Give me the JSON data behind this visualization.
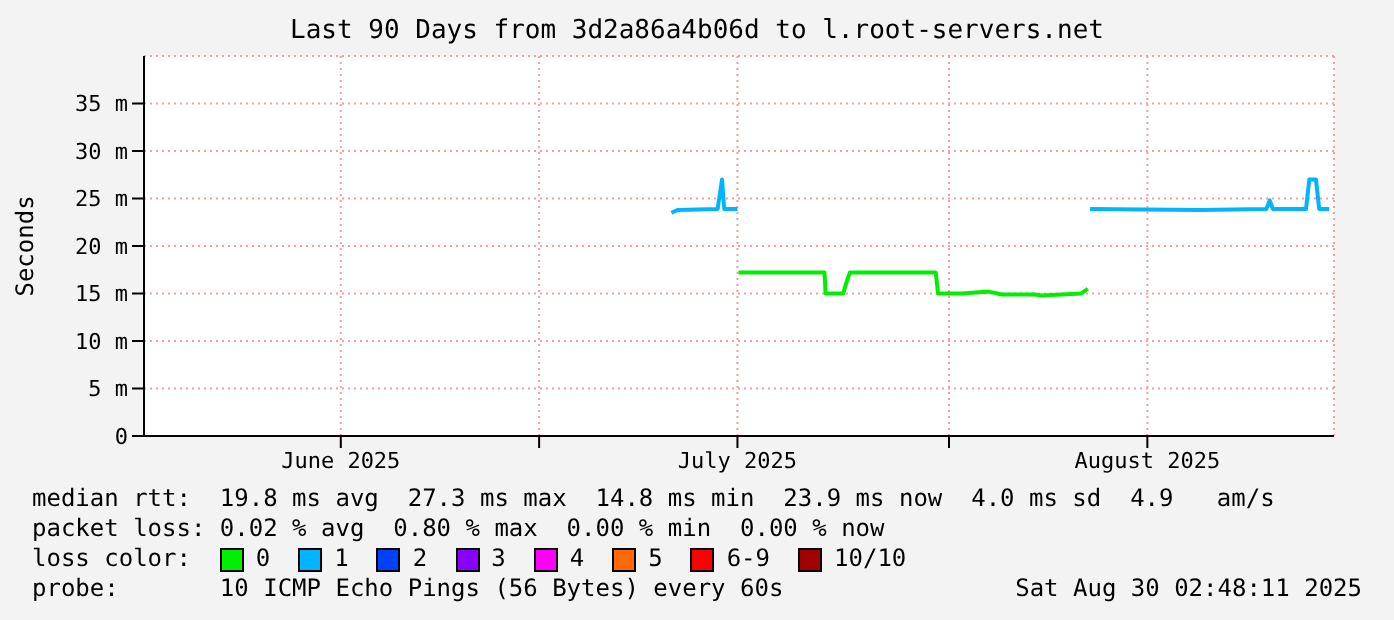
{
  "chart_data": {
    "type": "line",
    "title": "Last 90 Days from 3d2a86a4b06d to l.root-servers.net",
    "ylabel": "Seconds",
    "legend_title": "loss color:",
    "legend": "bottom",
    "grid": true,
    "marker": "none",
    "line_style": "solid",
    "xlim": [
      "2025-06-01T02:48",
      "2025-08-30T02:48"
    ],
    "xticks": [
      {
        "value": "2025-06-16",
        "label": "June 2025"
      },
      {
        "value": "2025-07-01",
        "label": null
      },
      {
        "value": "2025-07-16",
        "label": "July 2025"
      },
      {
        "value": "2025-08-01",
        "label": null
      },
      {
        "value": "2025-08-16",
        "label": "August 2025"
      }
    ],
    "ylim": [
      0,
      40
    ],
    "yticks": [
      0,
      {
        "value": 5,
        "label": "5 m"
      },
      {
        "value": 10,
        "label": "10 m"
      },
      {
        "value": 15,
        "label": "15 m"
      },
      {
        "value": 20,
        "label": "20 m"
      },
      {
        "value": 25,
        "label": "25 m"
      },
      {
        "value": 30,
        "label": "30 m"
      },
      {
        "value": 35,
        "label": "35 m"
      }
    ],
    "series": [
      {
        "name": "0",
        "color": "#00ee00",
        "x": [
          "2025-07-16T02:00",
          "2025-07-22T14:00",
          "2025-07-22T16:00",
          "2025-07-24T00:00",
          "2025-07-24T06:00",
          "2025-07-24T12:00",
          "2025-07-31T00:00",
          "2025-07-31T04:00",
          "2025-08-02T00:00",
          "2025-08-04T00:00",
          "2025-08-05T00:00",
          "2025-08-07T12:00",
          "2025-08-08T00:00",
          "2025-08-11T00:00",
          "2025-08-11T12:00"
        ],
        "values": [
          17.2,
          17.2,
          15,
          15,
          16.2,
          17.2,
          17.2,
          15,
          15,
          15.2,
          14.9,
          14.9,
          14.8,
          15,
          15.5
        ]
      },
      {
        "name": "1",
        "color": "#00b4ff",
        "x": [
          "2025-07-11T00:00",
          "2025-07-11T12:00",
          "2025-07-14T12:00",
          "2025-07-14T20:00",
          "2025-07-15T00:00",
          "2025-07-16T00:00",
          "2025-07-16T01:00",
          "2025-08-11T16:00",
          "2025-08-20T00:00",
          "2025-08-25T00:00",
          "2025-08-25T06:00",
          "2025-08-25T12:00",
          "2025-08-28T00:00",
          "2025-08-28T06:00",
          "2025-08-28T18:00",
          "2025-08-29T00:00",
          "2025-08-29T18:00"
        ],
        "values": [
          23.5,
          23.8,
          23.9,
          27,
          23.9,
          23.9,
          null,
          23.9,
          23.8,
          23.9,
          24.8,
          23.9,
          23.9,
          27,
          27,
          23.9,
          23.9
        ]
      },
      {
        "name": "2",
        "color": "#0040ff"
      },
      {
        "name": "3",
        "color": "#8a00ff"
      },
      {
        "name": "4",
        "color": "#ff00ff"
      },
      {
        "name": "5",
        "color": "#ff6a00"
      },
      {
        "name": "6-9",
        "color": "#ff0000"
      },
      {
        "name": "10/10",
        "color": "#a00000"
      }
    ],
    "annotations": [
      "median rtt:  19.8 ms avg  27.3 ms max  14.8 ms min  23.9 ms now  4.0 ms sd  4.9   am/s",
      "packet loss: 0.02 % avg  0.80 % max  0.00 % min  0.00 % now",
      "probe:       10 ICMP Echo Pings (56 Bytes) every 60s",
      "Sat Aug 30 02:48:11 2025"
    ]
  }
}
